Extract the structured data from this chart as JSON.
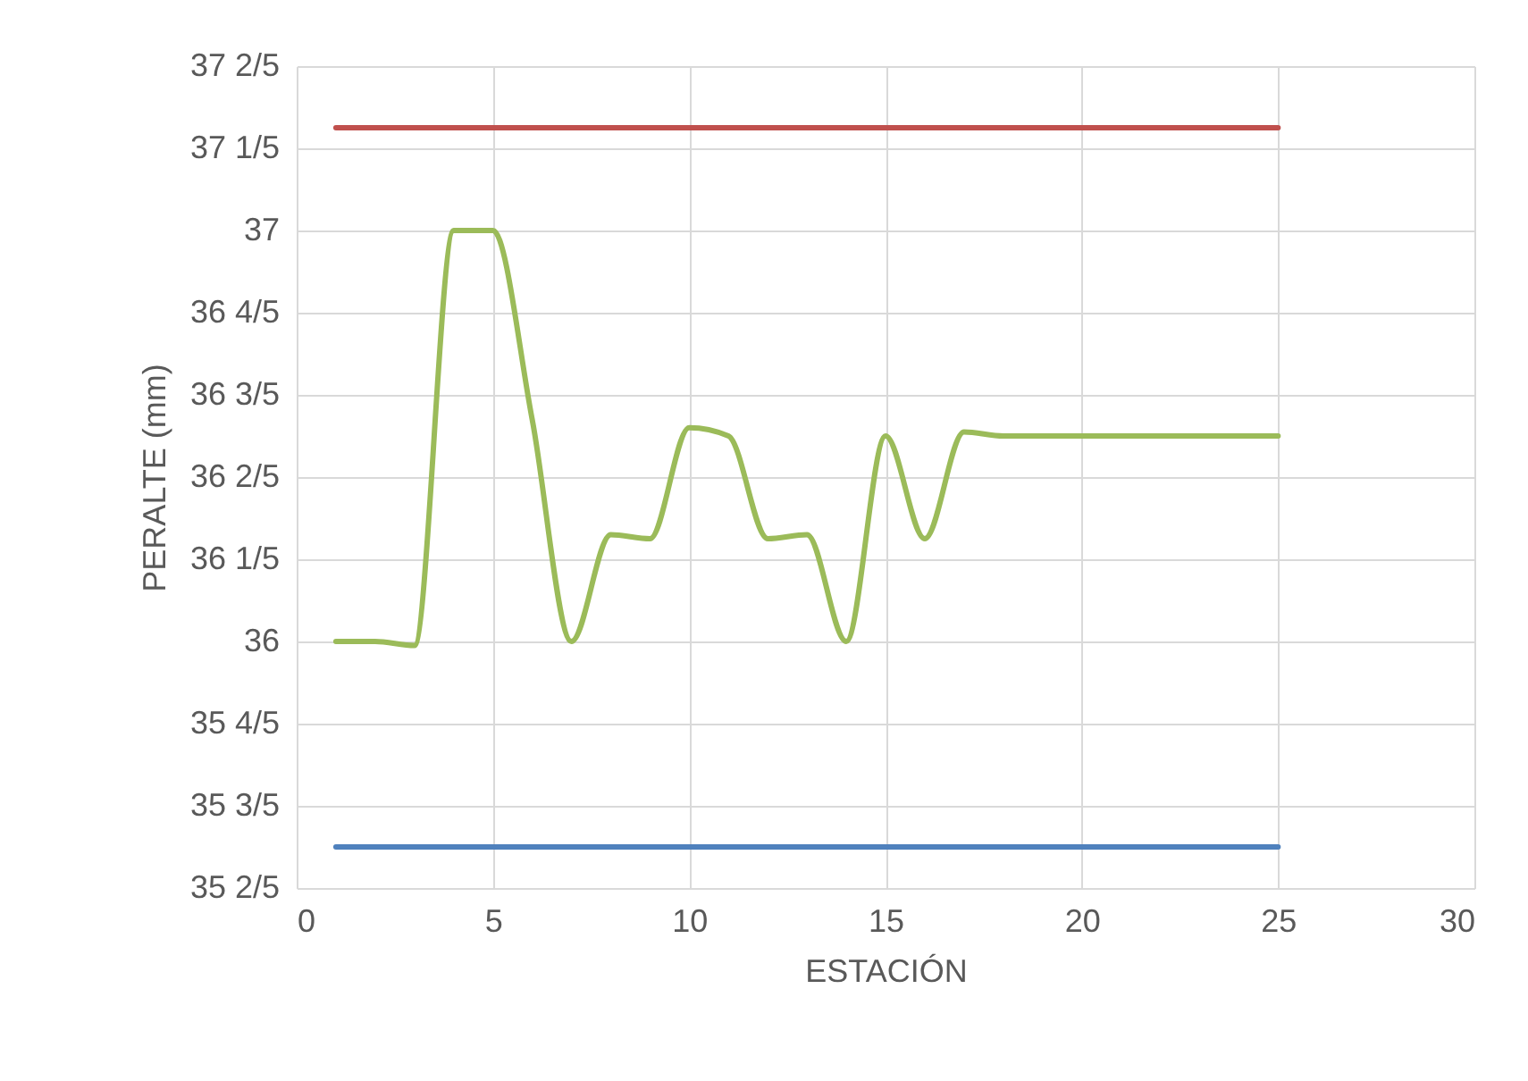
{
  "chart_data": {
    "type": "line",
    "xlabel": "ESTACIÓN",
    "ylabel": "PERALTE (mm)",
    "series": [
      {
        "color": "#4f81bd",
        "x": [
          1,
          25
        ],
        "values": [
          35.5,
          35.5
        ]
      },
      {
        "color": "#c0504d",
        "x": [
          1,
          25
        ],
        "values": [
          37.25,
          37.25
        ]
      },
      {
        "color": "#9bbb59",
        "x": [
          1,
          2,
          3,
          4,
          5,
          6,
          7,
          8,
          9,
          10,
          11,
          12,
          13,
          14,
          15,
          16,
          17,
          18,
          19,
          20,
          21,
          22,
          23,
          24,
          25
        ],
        "values": [
          36.0,
          36.0,
          35.99,
          37.0,
          37.0,
          36.54,
          36.0,
          36.26,
          36.25,
          36.52,
          36.5,
          36.25,
          36.26,
          36.0,
          36.5,
          36.25,
          36.51,
          36.5,
          36.5,
          36.5,
          36.5,
          36.5,
          36.5,
          36.5,
          36.5
        ]
      }
    ],
    "xlim": [
      0,
      30
    ],
    "xticks": [
      0,
      5,
      10,
      15,
      20,
      25,
      30
    ],
    "ylim": [
      35.4,
      37.4
    ],
    "yticks": [
      {
        "value": 35.4,
        "label": "35 2/5"
      },
      {
        "value": 35.6,
        "label": "35 3/5"
      },
      {
        "value": 35.8,
        "label": "35 4/5"
      },
      36,
      {
        "value": 36.2,
        "label": "36 1/5"
      },
      {
        "value": 36.4,
        "label": "36 2/5"
      },
      {
        "value": 36.6,
        "label": "36 3/5"
      },
      {
        "value": 36.8,
        "label": "36 4/5"
      },
      37,
      {
        "value": 37.2,
        "label": "37 1/5"
      },
      {
        "value": 37.4,
        "label": "37 2/5"
      }
    ],
    "grid": true,
    "legend": false,
    "marker": "none",
    "line_style": "solid"
  }
}
